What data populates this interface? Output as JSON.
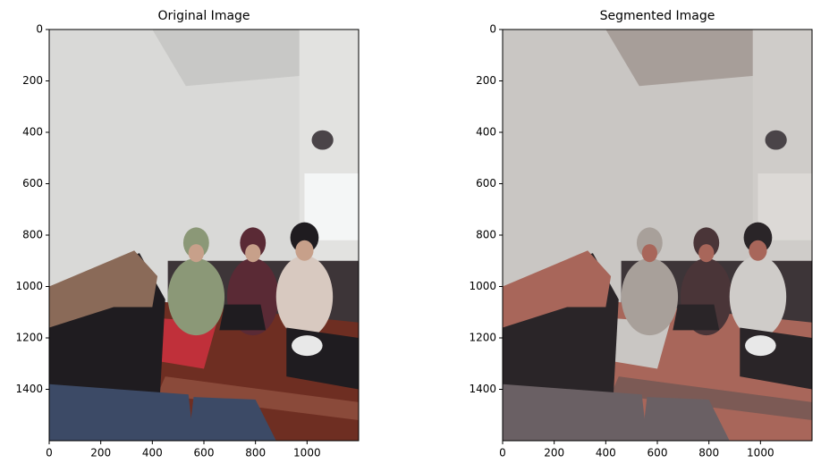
{
  "chart_data": [
    {
      "type": "image",
      "title": "Original Image",
      "xlim": [
        0,
        1200
      ],
      "ylim": [
        1600,
        0
      ],
      "xticks": [
        0,
        200,
        400,
        600,
        800,
        1000
      ],
      "yticks": [
        0,
        200,
        400,
        600,
        800,
        1000,
        1200,
        1400
      ]
    },
    {
      "type": "image",
      "title": "Segmented Image",
      "xlim": [
        0,
        1200
      ],
      "ylim": [
        1600,
        0
      ],
      "xticks": [
        0,
        200,
        400,
        600,
        800,
        1000
      ],
      "yticks": [
        0,
        200,
        400,
        600,
        800,
        1000,
        1200,
        1400
      ]
    }
  ]
}
